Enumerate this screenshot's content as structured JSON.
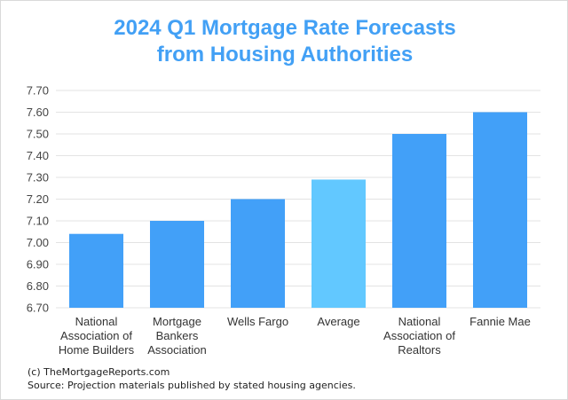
{
  "chart_data": {
    "type": "bar",
    "title_lines": [
      "2024 Q1 Mortgage Rate Forecasts",
      "from Housing Authorities"
    ],
    "categories": [
      [
        "National",
        "Association of",
        "Home Builders"
      ],
      [
        "Mortgage",
        "Bankers",
        "Association"
      ],
      [
        "Wells Fargo"
      ],
      [
        "Average"
      ],
      [
        "National",
        "Association of",
        "Realtors"
      ],
      [
        "Fannie Mae"
      ]
    ],
    "values": [
      7.04,
      7.1,
      7.2,
      7.29,
      7.5,
      7.6
    ],
    "colors": [
      "#42a0f8",
      "#42a0f8",
      "#42a0f8",
      "#62c8ff",
      "#42a0f8",
      "#42a0f8"
    ],
    "ylim": [
      6.7,
      7.7
    ],
    "yticks": [
      "6.70",
      "6.80",
      "6.90",
      "7.00",
      "7.10",
      "7.20",
      "7.30",
      "7.40",
      "7.50",
      "7.60",
      "7.70"
    ],
    "grid": true,
    "xlabel": "",
    "ylabel": ""
  },
  "footer": {
    "credit": "(c) TheMortgageReports.com",
    "source": "Source: Projection materials published by stated housing agencies."
  }
}
